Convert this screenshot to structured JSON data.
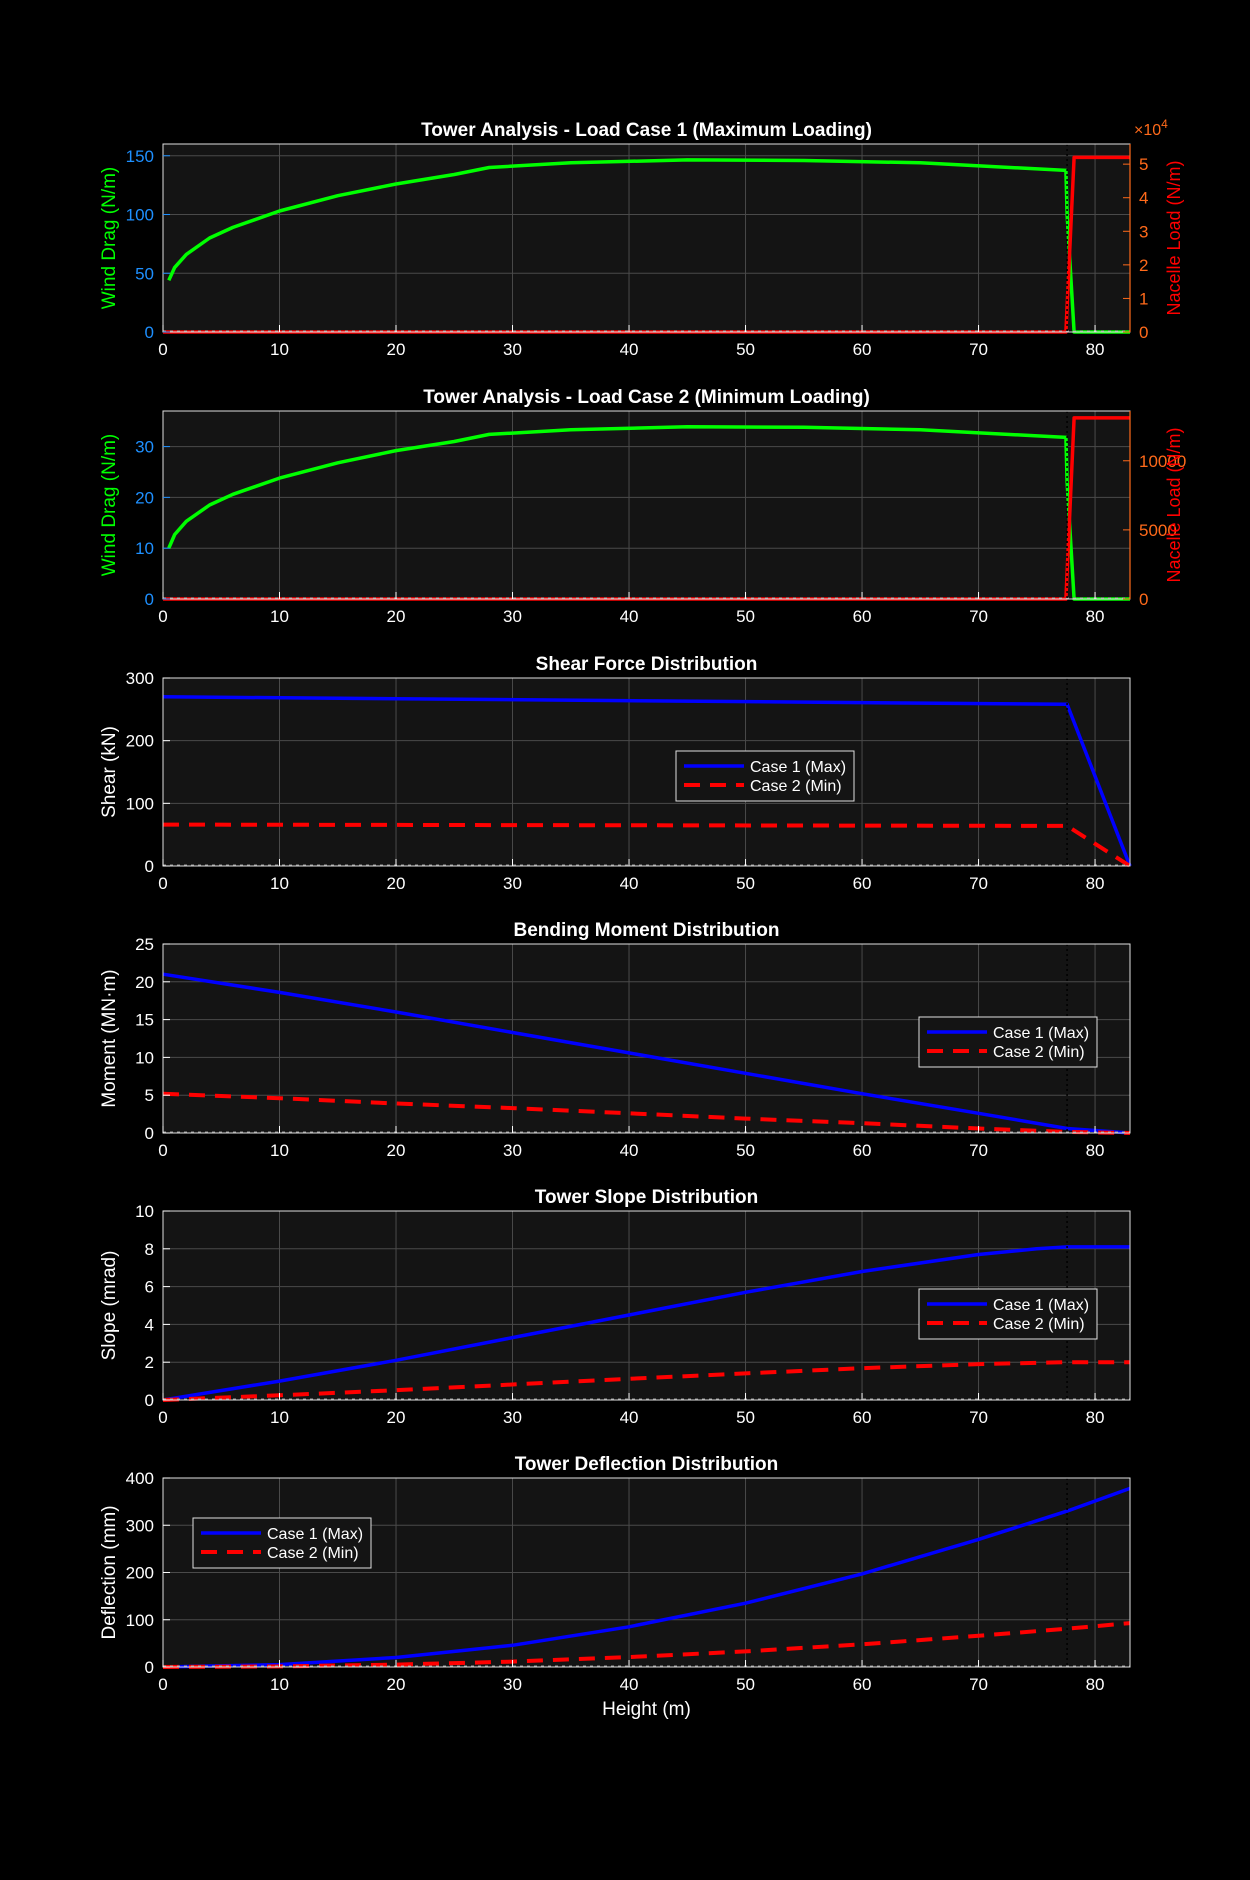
{
  "page": {
    "background": "#000000",
    "axes_background": "#141414",
    "grid_color": "#4a4a4a",
    "tick_color": "#ffffff"
  },
  "chart_data": [
    {
      "id": "lc1",
      "type": "line",
      "title": "Tower Analysis - Load Case 1 (Maximum Loading)",
      "xlabel": "",
      "ylabel": "Wind Drag (N/m)",
      "y2label": "Nacelle Load (N/m)",
      "y2_exponent_label": "×10",
      "y2_exponent": "4",
      "xlim": [
        0,
        83
      ],
      "ylim": [
        0,
        160
      ],
      "y2lim": [
        0,
        56000
      ],
      "xticks": [
        0,
        10,
        20,
        30,
        40,
        50,
        60,
        70,
        80
      ],
      "yticks": [
        0,
        50,
        100,
        150
      ],
      "y2ticks": [
        0,
        10000,
        20000,
        30000,
        40000,
        50000
      ],
      "y2ticklabels": [
        "0",
        "1",
        "2",
        "3",
        "4",
        "5"
      ],
      "grid": true,
      "ylabel_color": "#00ff00",
      "ytick_color": "#1e90ff",
      "y2label_color": "#ff0000",
      "y2tick_color": "#ff6a1a",
      "vline": 77.6,
      "series": [
        {
          "axis": "left",
          "color": "#00ff00",
          "style": "solid",
          "x": [
            0.5,
            1,
            2,
            4,
            6,
            10,
            15,
            20,
            25,
            28,
            35,
            45,
            55,
            65,
            77.5,
            77.6,
            78.2,
            83
          ],
          "y": [
            44,
            55,
            66,
            80,
            89,
            103,
            116,
            126,
            134,
            140,
            144,
            146.5,
            146,
            144,
            137.5,
            100,
            0,
            0
          ]
        },
        {
          "axis": "right",
          "color": "#ff0000",
          "style": "solid",
          "x": [
            0,
            77.5,
            78.2,
            83
          ],
          "y": [
            0,
            0,
            52000,
            52000
          ]
        }
      ]
    },
    {
      "id": "lc2",
      "type": "line",
      "title": "Tower Analysis - Load Case 2 (Minimum Loading)",
      "xlabel": "",
      "ylabel": "Wind Drag (N/m)",
      "y2label": "Nacelle Load (N/m)",
      "xlim": [
        0,
        83
      ],
      "ylim": [
        0,
        37
      ],
      "y2lim": [
        0,
        13600
      ],
      "xticks": [
        0,
        10,
        20,
        30,
        40,
        50,
        60,
        70,
        80
      ],
      "yticks": [
        0,
        10,
        20,
        30
      ],
      "y2ticks": [
        0,
        5000,
        10000
      ],
      "y2ticklabels": [
        "0",
        "5000",
        "10000"
      ],
      "grid": true,
      "ylabel_color": "#00ff00",
      "ytick_color": "#1e90ff",
      "y2label_color": "#ff0000",
      "y2tick_color": "#ff6a1a",
      "vline": 77.6,
      "series": [
        {
          "axis": "left",
          "color": "#00ff00",
          "style": "solid",
          "x": [
            0.5,
            1,
            2,
            4,
            6,
            10,
            15,
            20,
            25,
            28,
            35,
            45,
            55,
            65,
            77.5,
            77.6,
            78.2,
            83
          ],
          "y": [
            10,
            12.7,
            15.3,
            18.5,
            20.6,
            23.8,
            26.8,
            29.2,
            31,
            32.4,
            33.3,
            33.9,
            33.8,
            33.3,
            31.8,
            23,
            0,
            0
          ]
        },
        {
          "axis": "right",
          "color": "#ff0000",
          "style": "solid",
          "x": [
            0,
            77.5,
            78.2,
            83
          ],
          "y": [
            0,
            0,
            13100,
            13100
          ]
        }
      ]
    },
    {
      "id": "shear",
      "type": "line",
      "title": "Shear Force Distribution",
      "xlabel": "",
      "ylabel": "Shear (kN)",
      "xlim": [
        0,
        83
      ],
      "ylim": [
        0,
        300
      ],
      "xticks": [
        0,
        10,
        20,
        30,
        40,
        50,
        60,
        70,
        80
      ],
      "yticks": [
        0,
        100,
        200,
        300
      ],
      "grid": true,
      "vline": 77.6,
      "legend": {
        "position": "center"
      },
      "series": [
        {
          "name": "Case 1 (Max)",
          "color": "#0000ff",
          "style": "solid",
          "x": [
            0,
            77.6,
            83
          ],
          "y": [
            270,
            258,
            0
          ]
        },
        {
          "name": "Case 2 (Min)",
          "color": "#ff0000",
          "style": "dashed",
          "x": [
            0,
            77.6,
            83
          ],
          "y": [
            66,
            64,
            0
          ]
        }
      ]
    },
    {
      "id": "moment",
      "type": "line",
      "title": "Bending Moment Distribution",
      "xlabel": "",
      "ylabel": "Moment (MN·m)",
      "xlim": [
        0,
        83
      ],
      "ylim": [
        0,
        25
      ],
      "xticks": [
        0,
        10,
        20,
        30,
        40,
        50,
        60,
        70,
        80
      ],
      "yticks": [
        0,
        5,
        10,
        15,
        20,
        25
      ],
      "grid": true,
      "vline": 77.6,
      "legend": {
        "position": "right"
      },
      "series": [
        {
          "name": "Case 1 (Max)",
          "color": "#0000ff",
          "style": "solid",
          "x": [
            0,
            10,
            20,
            30,
            40,
            50,
            60,
            70,
            77.6,
            83
          ],
          "y": [
            21,
            18.6,
            16,
            13.3,
            10.6,
            7.9,
            5.2,
            2.6,
            0.6,
            0
          ]
        },
        {
          "name": "Case 2 (Min)",
          "color": "#ff0000",
          "style": "dashed",
          "x": [
            0,
            10,
            20,
            30,
            40,
            50,
            60,
            70,
            77.6,
            83
          ],
          "y": [
            5.2,
            4.6,
            3.9,
            3.3,
            2.6,
            1.9,
            1.3,
            0.6,
            0.15,
            0
          ]
        }
      ]
    },
    {
      "id": "slope",
      "type": "line",
      "title": "Tower Slope Distribution",
      "xlabel": "",
      "ylabel": "Slope (mrad)",
      "xlim": [
        0,
        83
      ],
      "ylim": [
        0,
        10
      ],
      "xticks": [
        0,
        10,
        20,
        30,
        40,
        50,
        60,
        70,
        80
      ],
      "yticks": [
        0,
        2,
        4,
        6,
        8,
        10
      ],
      "grid": true,
      "vline": 77.6,
      "legend": {
        "position": "right"
      },
      "series": [
        {
          "name": "Case 1 (Max)",
          "color": "#0000ff",
          "style": "solid",
          "x": [
            0,
            10,
            20,
            30,
            40,
            50,
            60,
            70,
            75,
            77.6,
            83
          ],
          "y": [
            0,
            1.0,
            2.1,
            3.3,
            4.5,
            5.7,
            6.8,
            7.7,
            8.0,
            8.1,
            8.1
          ]
        },
        {
          "name": "Case 2 (Min)",
          "color": "#ff0000",
          "style": "dashed",
          "x": [
            0,
            10,
            20,
            30,
            40,
            50,
            60,
            70,
            77.6,
            83
          ],
          "y": [
            0,
            0.25,
            0.52,
            0.82,
            1.12,
            1.41,
            1.68,
            1.9,
            2.0,
            2.0
          ]
        }
      ]
    },
    {
      "id": "deflection",
      "type": "line",
      "title": "Tower Deflection Distribution",
      "xlabel": "Height (m)",
      "ylabel": "Deflection (mm)",
      "xlim": [
        0,
        83
      ],
      "ylim": [
        0,
        400
      ],
      "xticks": [
        0,
        10,
        20,
        30,
        40,
        50,
        60,
        70,
        80
      ],
      "yticks": [
        0,
        100,
        200,
        300,
        400
      ],
      "grid": true,
      "vline": 77.6,
      "legend": {
        "position": "top-left"
      },
      "series": [
        {
          "name": "Case 1 (Max)",
          "color": "#0000ff",
          "style": "solid",
          "x": [
            0,
            10,
            20,
            30,
            40,
            50,
            60,
            70,
            77.6,
            83
          ],
          "y": [
            0,
            5,
            20,
            46,
            85,
            135,
            197,
            270,
            330,
            378
          ]
        },
        {
          "name": "Case 2 (Min)",
          "color": "#ff0000",
          "style": "dashed",
          "x": [
            0,
            10,
            20,
            30,
            40,
            50,
            60,
            70,
            77.6,
            83
          ],
          "y": [
            0,
            1.2,
            5,
            11.5,
            21,
            33,
            48,
            66,
            81,
            93
          ]
        }
      ]
    }
  ]
}
